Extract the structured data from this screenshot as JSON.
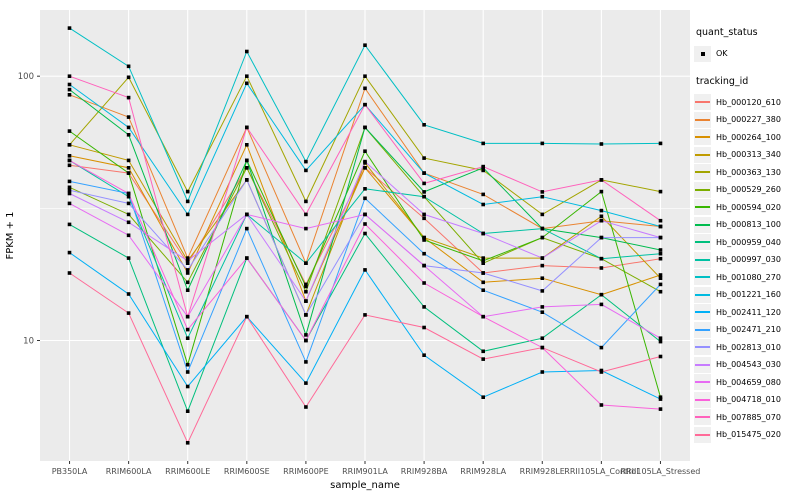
{
  "legend": {
    "quant_status_title": "quant_status",
    "quant_status_value": "OK",
    "tracking_id_title": "tracking_id"
  },
  "chart_data": {
    "type": "line",
    "title": "",
    "xlabel": "sample_name",
    "ylabel": "FPKM + 1",
    "y_scale": "log10",
    "y_ticks": [
      10,
      100
    ],
    "y_minor_ticks": [
      31.6
    ],
    "ylim": [
      3.5,
      178
    ],
    "grid": true,
    "legend_position": "right",
    "panel_background": "#EBEBEB",
    "point_marker": {
      "shape": "square",
      "color": "#000000"
    },
    "x_categories": [
      "PB350LA",
      "RRIM600LA",
      "RRIM600LE",
      "RRIM600SE",
      "RRIM600PE",
      "RRIM901LA",
      "RRIM928BA",
      "RRIM928LA",
      "RRIM928LE",
      "RRII105LA_Control",
      "RRII105LA_Stressed"
    ],
    "series": [
      {
        "name": "Hb_000120_610",
        "color": "#F8766D",
        "values": [
          46,
          43,
          19.6,
          45,
          16.3,
          45,
          29,
          18,
          19.2,
          18.8,
          20.4
        ]
      },
      {
        "name": "Hb_000227_380",
        "color": "#EA8331",
        "values": [
          85,
          70,
          20.5,
          64,
          19.6,
          90,
          43,
          35.7,
          26.5,
          28.4,
          27
        ]
      },
      {
        "name": "Hb_000264_100",
        "color": "#D89000",
        "values": [
          50,
          45,
          18,
          55,
          14.1,
          45,
          24.5,
          16.6,
          17.2,
          14.9,
          17.7
        ]
      },
      {
        "name": "Hb_000313_340",
        "color": "#C09B00",
        "values": [
          55,
          48,
          20,
          40.5,
          12.5,
          47,
          24.5,
          20.5,
          20.5,
          29.5,
          17.2
        ]
      },
      {
        "name": "Hb_000363_130",
        "color": "#A3A500",
        "values": [
          55,
          99,
          36.6,
          100,
          33.6,
          100,
          49,
          44,
          30,
          40.5,
          36.6
        ]
      },
      {
        "name": "Hb_000529_260",
        "color": "#7CAE00",
        "values": [
          38,
          30,
          16.6,
          45,
          15.3,
          64,
          35,
          19.6,
          24.5,
          20.4,
          15.3
        ]
      },
      {
        "name": "Hb_000594_020",
        "color": "#39B600",
        "values": [
          62,
          43,
          8.1,
          48,
          16,
          52,
          24,
          20,
          24.5,
          36.6,
          6.1
        ]
      },
      {
        "name": "Hb_000813_100",
        "color": "#00BB4E",
        "values": [
          89,
          60,
          15.5,
          48,
          10.5,
          64,
          36.5,
          45,
          26.5,
          24.5,
          22
        ]
      },
      {
        "name": "Hb_000959_040",
        "color": "#00BF7D",
        "values": [
          27.5,
          20.5,
          5.4,
          20.5,
          10,
          25.4,
          13.4,
          9.1,
          10.2,
          14.9,
          9.9
        ]
      },
      {
        "name": "Hb_000997_030",
        "color": "#00C1A3",
        "values": [
          48,
          35,
          10.2,
          30,
          19.6,
          37.5,
          35,
          25.4,
          26.5,
          20.4,
          21.3
        ]
      },
      {
        "name": "Hb_001080_270",
        "color": "#00BFC4",
        "values": [
          152,
          109,
          33.6,
          124,
          47.5,
          131,
          65.5,
          55.7,
          55.7,
          55.4,
          55.7
        ]
      },
      {
        "name": "Hb_001221_160",
        "color": "#00BAE0",
        "values": [
          93,
          64,
          30,
          94,
          44,
          78,
          43,
          32.7,
          35,
          31,
          27
        ]
      },
      {
        "name": "Hb_002411_120",
        "color": "#00B0F6",
        "values": [
          21.5,
          15,
          6.7,
          12.3,
          6.9,
          18.5,
          8.8,
          6.1,
          7.6,
          7.7,
          6
        ]
      },
      {
        "name": "Hb_002471_210",
        "color": "#35A2FF",
        "values": [
          40,
          36,
          7.6,
          26.5,
          8.3,
          34.5,
          21.3,
          15.5,
          12.8,
          9.4,
          16.3
        ]
      },
      {
        "name": "Hb_002813_010",
        "color": "#9590FF",
        "values": [
          37,
          33,
          18.5,
          40.5,
          12.5,
          30,
          19.2,
          18,
          15.4,
          24.5,
          24.5
        ]
      },
      {
        "name": "Hb_004543_030",
        "color": "#C77CFF",
        "values": [
          36,
          28,
          20,
          30,
          14.1,
          47.5,
          30,
          25.4,
          20.5,
          28.4,
          24.5
        ]
      },
      {
        "name": "Hb_004659_080",
        "color": "#E76BF3",
        "values": [
          33,
          25,
          12.3,
          30,
          26.5,
          30,
          19.2,
          12.3,
          13.4,
          13.7,
          10.2
        ]
      },
      {
        "name": "Hb_004718_010",
        "color": "#FA62DB",
        "values": [
          48,
          36,
          11,
          20.5,
          10,
          27.6,
          16.5,
          12.3,
          9.4,
          5.7,
          5.5
        ]
      },
      {
        "name": "Hb_007885_070",
        "color": "#FF62BC",
        "values": [
          100,
          83,
          12.3,
          64,
          30,
          78,
          39.3,
          45.5,
          36.5,
          40.5,
          28.4
        ]
      },
      {
        "name": "Hb_015475_020",
        "color": "#FF6A98",
        "values": [
          18,
          12.7,
          4.1,
          12.3,
          5.6,
          12.5,
          11.2,
          8.5,
          9.4,
          7.6,
          8.7
        ]
      }
    ]
  }
}
